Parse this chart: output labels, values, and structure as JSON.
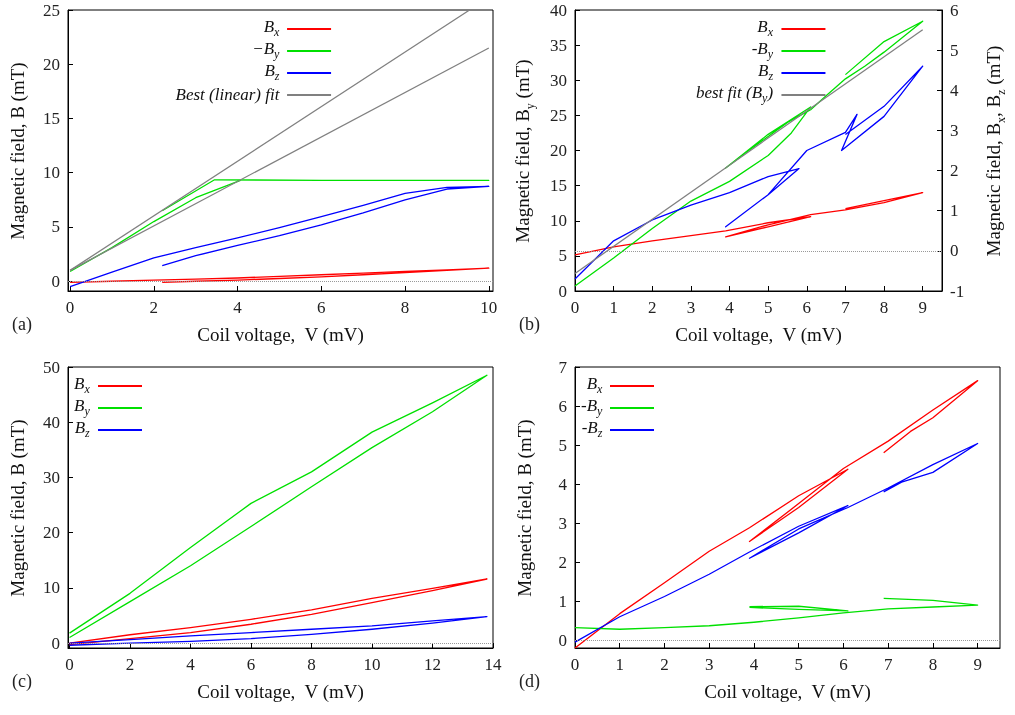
{
  "chart_data": [
    {
      "type": "line",
      "xlabel": "Coil voltage,  V (mV)",
      "ylabel": "Magnetic field,  B (mT)",
      "annotations": [
        "(a)"
      ],
      "xlim": [
        -0.05,
        10.1
      ],
      "xticks": [
        0,
        2,
        4,
        6,
        8,
        10
      ],
      "ylim": [
        -0.9,
        25
      ],
      "yticks": [
        0,
        5,
        10,
        15,
        20,
        25
      ],
      "legend": "top",
      "ref_lines": [
        {
          "axis": "y",
          "value": 0,
          "color": "#999999",
          "line_style": "dotted"
        }
      ],
      "series": [
        {
          "name": "B$_{x}$",
          "color": "#ff0000",
          "x": [
            0,
            1,
            2,
            3,
            4,
            5,
            6,
            7,
            8,
            9,
            10,
            9,
            8,
            7,
            6,
            5,
            4,
            3,
            2.2
          ],
          "values": [
            -0.1,
            0,
            0.1,
            0.2,
            0.3,
            0.45,
            0.6,
            0.75,
            0.9,
            1.05,
            1.2,
            1.0,
            0.8,
            0.6,
            0.4,
            0.25,
            0.1,
            0,
            -0.1
          ]
        },
        {
          "name": "−B$_{y}$",
          "color": "#00e000",
          "x": [
            0,
            1,
            2,
            3,
            4.1,
            6,
            8,
            10,
            8,
            6,
            3.45,
            2.2
          ],
          "values": [
            0.9,
            3.1,
            5.5,
            7.7,
            9.35,
            9.3,
            9.3,
            9.3,
            9.3,
            9.3,
            9.35,
            6.5
          ]
        },
        {
          "name": "B$_{z}$",
          "color": "#0000ff",
          "x": [
            0,
            1,
            2,
            3,
            4,
            5,
            6,
            7,
            8,
            9,
            10,
            9,
            8,
            7,
            6,
            5,
            4,
            3,
            2.2
          ],
          "values": [
            -0.5,
            0.85,
            2.15,
            3.1,
            4.0,
            4.95,
            5.95,
            7.0,
            8.1,
            8.65,
            8.75,
            8.5,
            7.5,
            6.3,
            5.2,
            4.2,
            3.3,
            2.35,
            1.45
          ]
        },
        {
          "name": "Best (linear) fit",
          "color": "#808080",
          "x": [
            0,
            9.54
          ],
          "values": [
            1,
            25
          ]
        },
        {
          "color": "#808080",
          "x": [
            0,
            10
          ],
          "values": [
            1,
            21.5
          ]
        }
      ]
    },
    {
      "type": "line",
      "xlabel": "Coil voltage,  V (mV)",
      "ylabel": "Magnetic field,  B$_{y}$ (mT)",
      "y2label": "Magnetic field,  B$_{x}$, B$_{z}$ (mT)",
      "annotations": [
        "(b)"
      ],
      "xlim": [
        0,
        9.5
      ],
      "xticks": [
        0,
        1,
        2,
        3,
        4,
        5,
        6,
        7,
        8,
        9
      ],
      "ylim": [
        0,
        40
      ],
      "yticks": [
        0,
        5,
        10,
        15,
        20,
        25,
        30,
        35,
        40
      ],
      "y2lim": [
        -1,
        6
      ],
      "y2ticks": [
        -1,
        0,
        1,
        2,
        3,
        4,
        5,
        6
      ],
      "legend": "top",
      "ref_lines": [
        {
          "axis": "y2",
          "value": 0,
          "color": "#999999",
          "line_style": "dotted"
        }
      ],
      "series": [
        {
          "name": "B$_{x}$",
          "color": "#ff0000",
          "axis": "y2",
          "x": [
            0,
            1,
            2,
            3,
            3.9,
            5,
            6.1,
            5,
            3.9,
            5,
            6.1,
            7,
            8,
            9,
            8,
            7
          ],
          "values": [
            -0.1,
            0.1,
            0.25,
            0.38,
            0.5,
            0.7,
            0.85,
            0.6,
            0.35,
            0.65,
            0.9,
            1.02,
            1.2,
            1.45,
            1.25,
            1.05
          ]
        },
        {
          "name": "-B$_{y}$",
          "color": "#00e000",
          "x": [
            0,
            1,
            2,
            3,
            4,
            5,
            5.6,
            6.1,
            5,
            3.9,
            4.5,
            5.5,
            6.1,
            6.5,
            7,
            7.5,
            8,
            9,
            8,
            7
          ],
          "values": [
            0.7,
            4.7,
            8.9,
            12.8,
            15.6,
            19.3,
            22.5,
            26.2,
            22.3,
            17.5,
            20,
            24,
            25.8,
            27.8,
            30.2,
            32,
            34,
            38.4,
            35.5,
            30.8
          ]
        },
        {
          "name": "B$_{z}$",
          "color": "#0000ff",
          "axis": "y2",
          "x": [
            0,
            1,
            2,
            3,
            4,
            5,
            5.8,
            5,
            3.9,
            5,
            6,
            7,
            7.3,
            6.9,
            8,
            9,
            8,
            7
          ],
          "values": [
            -0.7,
            0.25,
            0.77,
            1.14,
            1.45,
            1.85,
            2.05,
            1.4,
            0.6,
            1.4,
            2.5,
            2.95,
            3.4,
            2.5,
            3.35,
            4.6,
            3.6,
            2.9
          ]
        },
        {
          "name": "best fit (B$_{y}$)",
          "color": "#808080",
          "x": [
            0,
            9
          ],
          "values": [
            2.5,
            37.2
          ]
        }
      ]
    },
    {
      "type": "line",
      "xlabel": "Coil voltage,  V (mV)",
      "ylabel": "Magnetic field,  B (mT)",
      "annotations": [
        "(c)"
      ],
      "xlim": [
        -0.05,
        14
      ],
      "xticks": [
        0,
        2,
        4,
        6,
        8,
        10,
        12,
        14
      ],
      "ylim": [
        -0.9,
        50
      ],
      "yticks": [
        0,
        10,
        20,
        30,
        40,
        50
      ],
      "legend": "top left",
      "ref_lines": [
        {
          "axis": "y",
          "value": 0,
          "color": "#999999",
          "line_style": "dotted"
        }
      ],
      "series": [
        {
          "name": "B$_{x}$",
          "color": "#ff0000",
          "x": [
            0,
            2,
            4,
            6,
            8,
            10,
            12,
            13.8,
            12,
            10,
            8,
            6,
            4,
            2,
            0
          ],
          "values": [
            -0.3,
            0.8,
            1.9,
            3.4,
            5.2,
            7.3,
            9.5,
            11.6,
            9.9,
            8.1,
            6,
            4.3,
            2.8,
            1.5,
            0
          ]
        },
        {
          "name": "B$_{y}$",
          "color": "#00e000",
          "x": [
            0,
            2,
            4,
            6,
            8,
            10,
            12,
            13.8,
            12,
            10,
            8,
            6,
            4,
            2,
            0
          ],
          "values": [
            1,
            7.5,
            14,
            21.1,
            28.3,
            35.4,
            41.9,
            48.5,
            43.5,
            38.2,
            31,
            25.3,
            17.3,
            9,
            1.8
          ]
        },
        {
          "name": "B$_{z}$",
          "color": "#0000ff",
          "x": [
            0,
            2,
            4,
            6,
            8,
            10,
            12,
            13.8,
            12,
            10,
            8,
            6,
            4,
            2,
            0
          ],
          "values": [
            -0.4,
            0,
            0.3,
            0.8,
            1.55,
            2.5,
            3.6,
            4.8,
            4,
            3.1,
            2.5,
            1.9,
            1.3,
            0.6,
            0
          ]
        }
      ]
    },
    {
      "type": "line",
      "xlabel": "Coil voltage,  V (mV)",
      "ylabel": "Magnetic field,  B (mT)",
      "annotations": [
        "(d)"
      ],
      "xlim": [
        0,
        9.5
      ],
      "xticks": [
        0,
        1,
        2,
        3,
        4,
        5,
        6,
        7,
        8,
        9
      ],
      "ylim": [
        -0.2,
        7
      ],
      "yticks": [
        0,
        1,
        2,
        3,
        4,
        5,
        6,
        7
      ],
      "legend": "top left",
      "ref_lines": [
        {
          "axis": "y",
          "value": 0,
          "color": "#999999",
          "line_style": "dotted"
        }
      ],
      "series": [
        {
          "name": "B$_{x}$",
          "color": "#ff0000",
          "x": [
            0,
            1,
            2,
            3,
            3.9,
            5,
            6.1,
            5,
            3.9,
            5,
            6,
            7,
            8,
            9,
            8,
            7.5,
            6.9
          ],
          "values": [
            -0.2,
            0.68,
            1.47,
            2.28,
            2.88,
            3.7,
            4.38,
            3.4,
            2.53,
            3.5,
            4.4,
            5.1,
            5.9,
            6.65,
            5.7,
            5.35,
            4.8
          ]
        },
        {
          "name": "-B$_{y}$",
          "color": "#00e000",
          "x": [
            0,
            1,
            2,
            3,
            4,
            5,
            6,
            7,
            8,
            9,
            8,
            6.9,
            null,
            3.9,
            5,
            6.1,
            5,
            3.9
          ],
          "values": [
            0.32,
            0.28,
            0.32,
            0.37,
            0.46,
            0.57,
            0.7,
            0.8,
            0.85,
            0.9,
            1.02,
            1.07,
            null,
            0.86,
            0.87,
            0.75,
            0.79,
            0.84
          ]
        },
        {
          "name": "-B$_{z}$",
          "color": "#0000ff",
          "x": [
            0,
            1,
            2,
            3,
            3.9,
            5,
            6.1,
            5,
            3.9,
            5,
            6.1,
            7,
            8,
            9,
            8,
            7.3,
            6.9
          ],
          "values": [
            -0.05,
            0.6,
            1.12,
            1.69,
            2.26,
            2.92,
            3.45,
            2.75,
            2.1,
            2.85,
            3.4,
            3.9,
            4.5,
            5.04,
            4.3,
            4.05,
            3.8
          ]
        }
      ]
    }
  ]
}
